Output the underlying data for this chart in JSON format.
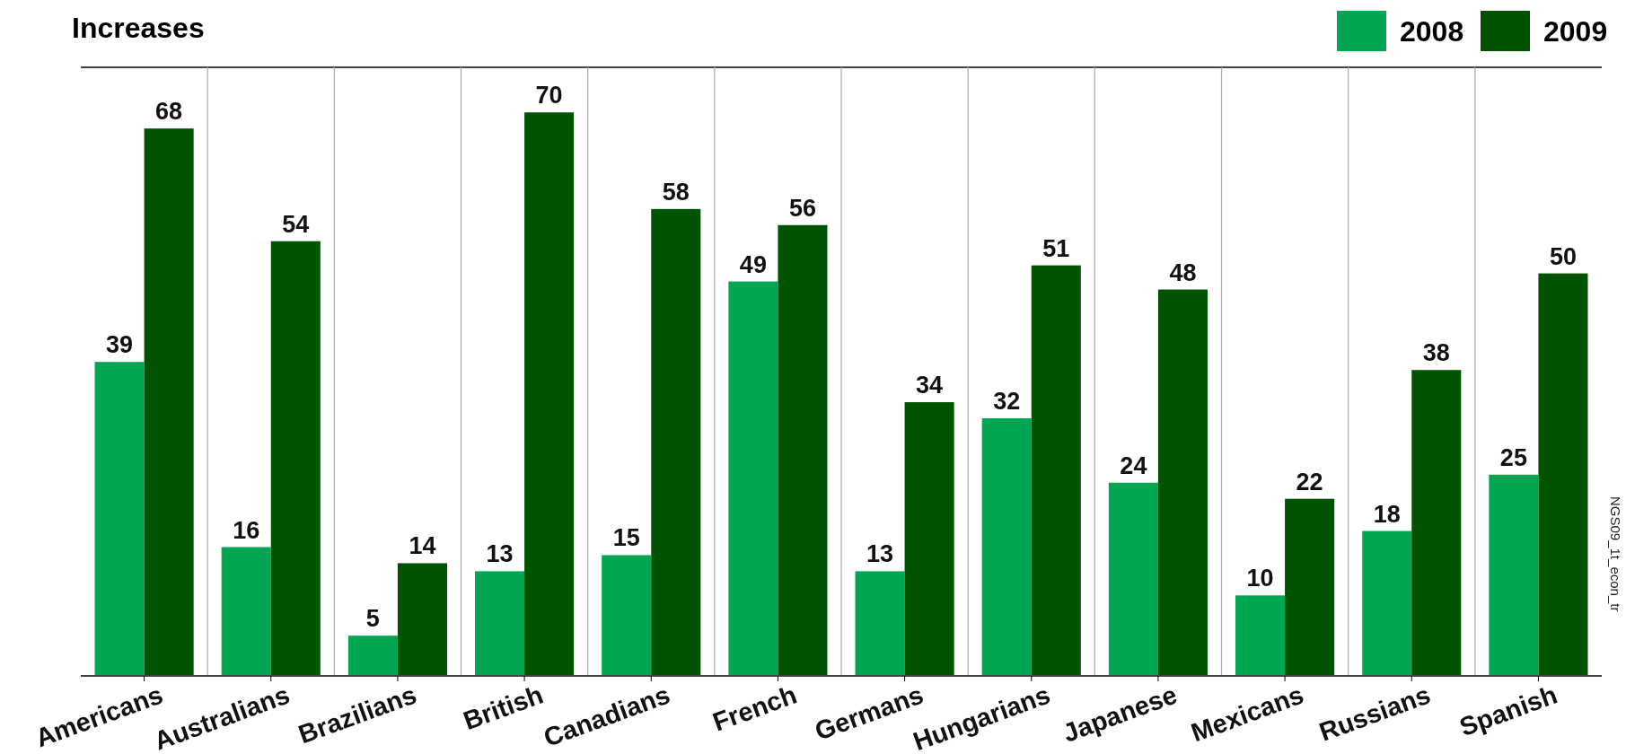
{
  "chart_data": {
    "type": "bar",
    "title": "Increases",
    "categories": [
      "Americans",
      "Australians",
      "Brazilians",
      "British",
      "Canadians",
      "French",
      "Germans",
      "Hungarians",
      "Japanese",
      "Mexicans",
      "Russians",
      "Spanish"
    ],
    "series": [
      {
        "name": "2008",
        "color": "#00a651",
        "values": [
          39,
          16,
          5,
          13,
          15,
          49,
          13,
          32,
          24,
          10,
          18,
          25
        ]
      },
      {
        "name": "2009",
        "color": "#005300",
        "values": [
          68,
          54,
          14,
          70,
          58,
          56,
          34,
          51,
          48,
          22,
          38,
          50
        ]
      }
    ],
    "data_labels": true,
    "grid": "x",
    "legend": "top right",
    "annotations": [
      "NGS09_1t_econ_tr"
    ]
  }
}
